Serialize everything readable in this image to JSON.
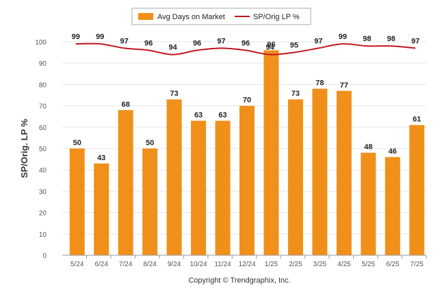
{
  "chart_data": {
    "type": "bar+line",
    "categories": [
      "5/24",
      "6/24",
      "7/24",
      "8/24",
      "9/24",
      "10/24",
      "11/24",
      "12/24",
      "1/25",
      "2/25",
      "3/25",
      "4/25",
      "5/25",
      "6/25",
      "7/25"
    ],
    "series": [
      {
        "name": "Avg Days on Market",
        "type": "bar",
        "color": "#f0901a",
        "values": [
          50,
          43,
          68,
          50,
          73,
          63,
          63,
          70,
          96,
          73,
          78,
          77,
          48,
          46,
          61
        ]
      },
      {
        "name": "SP/Orig LP %",
        "type": "line",
        "color": "#c0161c",
        "values": [
          99,
          99,
          97,
          96,
          94,
          96,
          97,
          96,
          94,
          95,
          97,
          99,
          98,
          98,
          97
        ]
      }
    ],
    "ylabel": "SP/Orig. LP %",
    "ylim": [
      0,
      100
    ],
    "yticks": [
      0,
      10,
      20,
      30,
      40,
      50,
      60,
      70,
      80,
      90,
      100
    ],
    "grid": true,
    "legend": "top-center"
  },
  "footer": {
    "copyright": "Copyright © Trendgraphix, Inc."
  }
}
